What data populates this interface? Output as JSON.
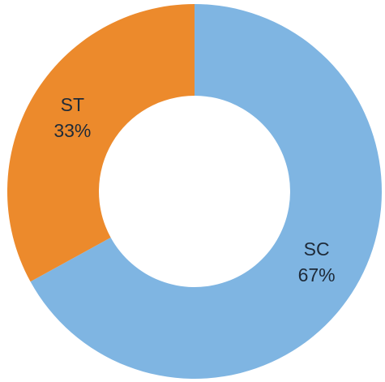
{
  "chart_data": {
    "type": "donut",
    "categories": [
      "SC",
      "ST"
    ],
    "values": [
      67,
      33
    ],
    "value_labels": [
      "67%",
      "33%"
    ],
    "colors": [
      "#7fb5e2",
      "#ec8a2c"
    ]
  }
}
